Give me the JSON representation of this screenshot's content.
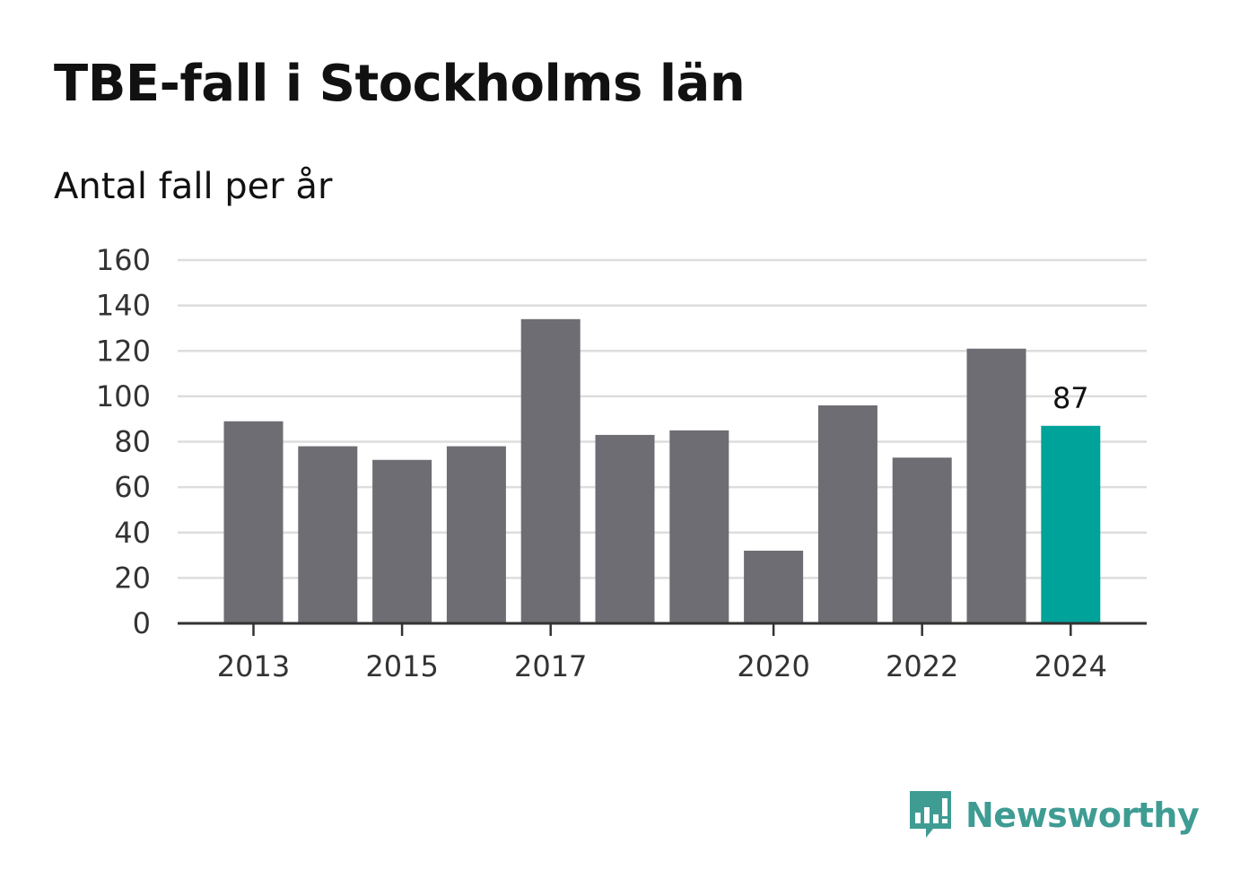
{
  "header": {
    "title": "TBE-fall i Stockholms län",
    "subtitle": "Antal fall per år"
  },
  "brand": {
    "name": "Newsworthy",
    "color": "#3e9c93",
    "icon": "bar-chart-speech-bubble-icon"
  },
  "colors": {
    "bar": "#6e6d73",
    "highlight": "#00a39a",
    "grid": "#dddddd",
    "axis": "#333333"
  },
  "chart_data": {
    "type": "bar",
    "title": "TBE-fall i Stockholms län",
    "subtitle": "Antal fall per år",
    "categories": [
      "2013",
      "2014",
      "2015",
      "2016",
      "2017",
      "2018",
      "2019",
      "2020",
      "2021",
      "2022",
      "2023",
      "2024"
    ],
    "x_tick_labels": [
      "2013",
      "2015",
      "2017",
      "2020",
      "2022",
      "2024"
    ],
    "values": [
      89,
      78,
      72,
      78,
      134,
      83,
      85,
      32,
      96,
      73,
      121,
      87
    ],
    "highlight_category": "2024",
    "data_labels": [
      {
        "category": "2024",
        "text": "87"
      }
    ],
    "ylim": [
      0,
      160
    ],
    "y_ticks": [
      0,
      20,
      40,
      60,
      80,
      100,
      120,
      140,
      160
    ],
    "grid": true,
    "legend": "none"
  }
}
